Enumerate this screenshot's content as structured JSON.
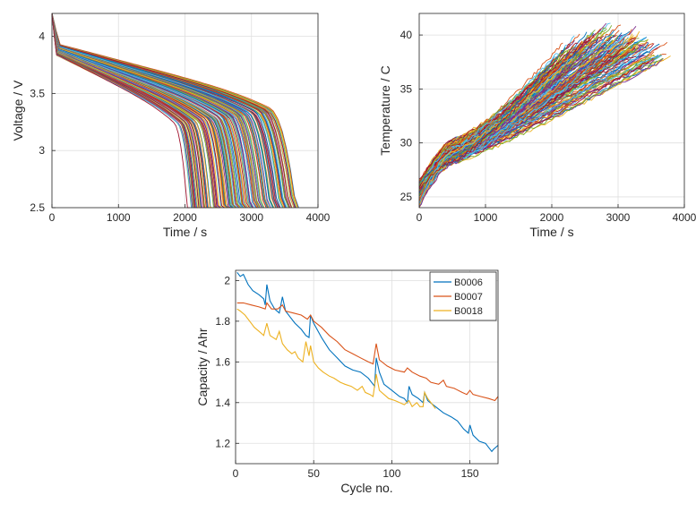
{
  "chart_data": [
    {
      "type": "line",
      "xlabel": "Time / s",
      "ylabel": "Voltage / V",
      "xlim": [
        0,
        4000
      ],
      "ylim": [
        2.5,
        4.2
      ],
      "x_ticks": [
        "0",
        "1000",
        "2000",
        "3000",
        "4000"
      ],
      "y_ticks": [
        "2.5",
        "3",
        "3.5",
        "4"
      ],
      "grid": true,
      "curve_count": 168,
      "discharge_end_time_range": [
        2100,
        3700
      ],
      "start_voltage": 4.2,
      "cutoff_voltage": 2.5
    },
    {
      "type": "line",
      "xlabel": "Time / s",
      "ylabel": "Temperature / C",
      "xlim": [
        0,
        4000
      ],
      "ylim": [
        24,
        42
      ],
      "x_ticks": [
        "0",
        "1000",
        "2000",
        "3000",
        "4000"
      ],
      "y_ticks": [
        "25",
        "30",
        "35",
        "40"
      ],
      "grid": true,
      "curve_count": 168,
      "start_temperature_range": [
        24,
        26.5
      ],
      "end_temperature_range": [
        35,
        41.5
      ]
    },
    {
      "type": "line",
      "xlabel": "Cycle no.",
      "ylabel": "Capacity / Ahr",
      "xlim": [
        0,
        168
      ],
      "ylim": [
        1.1,
        2.05
      ],
      "x_ticks": [
        "0",
        "50",
        "100",
        "150"
      ],
      "y_ticks": [
        "1.2",
        "1.4",
        "1.6",
        "1.8",
        "2"
      ],
      "grid": true,
      "legend_position": "top-right",
      "series": [
        {
          "name": "B0006",
          "color": "#0072BD",
          "points": [
            [
              1,
              2.04
            ],
            [
              3,
              2.02
            ],
            [
              5,
              2.03
            ],
            [
              8,
              1.98
            ],
            [
              11,
              1.95
            ],
            [
              15,
              1.93
            ],
            [
              18,
              1.91
            ],
            [
              19,
              1.88
            ],
            [
              20,
              1.98
            ],
            [
              22,
              1.9
            ],
            [
              25,
              1.86
            ],
            [
              28,
              1.84
            ],
            [
              30,
              1.92
            ],
            [
              32,
              1.85
            ],
            [
              35,
              1.82
            ],
            [
              38,
              1.79
            ],
            [
              42,
              1.76
            ],
            [
              45,
              1.73
            ],
            [
              47,
              1.72
            ],
            [
              48,
              1.83
            ],
            [
              50,
              1.79
            ],
            [
              55,
              1.72
            ],
            [
              60,
              1.66
            ],
            [
              65,
              1.62
            ],
            [
              70,
              1.58
            ],
            [
              75,
              1.56
            ],
            [
              80,
              1.55
            ],
            [
              85,
              1.52
            ],
            [
              88,
              1.49
            ],
            [
              89,
              1.48
            ],
            [
              90,
              1.62
            ],
            [
              92,
              1.55
            ],
            [
              95,
              1.49
            ],
            [
              100,
              1.46
            ],
            [
              105,
              1.43
            ],
            [
              108,
              1.42
            ],
            [
              110,
              1.4
            ],
            [
              111,
              1.48
            ],
            [
              113,
              1.44
            ],
            [
              117,
              1.42
            ],
            [
              120,
              1.4
            ],
            [
              121,
              1.45
            ],
            [
              123,
              1.41
            ],
            [
              128,
              1.38
            ],
            [
              133,
              1.35
            ],
            [
              138,
              1.33
            ],
            [
              142,
              1.31
            ],
            [
              146,
              1.27
            ],
            [
              149,
              1.25
            ],
            [
              150,
              1.29
            ],
            [
              152,
              1.24
            ],
            [
              156,
              1.21
            ],
            [
              160,
              1.2
            ],
            [
              164,
              1.16
            ],
            [
              165,
              1.17
            ],
            [
              168,
              1.19
            ]
          ]
        },
        {
          "name": "B0007",
          "color": "#D95319",
          "points": [
            [
              1,
              1.89
            ],
            [
              5,
              1.89
            ],
            [
              10,
              1.88
            ],
            [
              15,
              1.87
            ],
            [
              19,
              1.86
            ],
            [
              20,
              1.89
            ],
            [
              23,
              1.86
            ],
            [
              27,
              1.86
            ],
            [
              30,
              1.88
            ],
            [
              32,
              1.85
            ],
            [
              37,
              1.84
            ],
            [
              42,
              1.83
            ],
            [
              46,
              1.81
            ],
            [
              48,
              1.83
            ],
            [
              50,
              1.8
            ],
            [
              55,
              1.77
            ],
            [
              60,
              1.73
            ],
            [
              65,
              1.7
            ],
            [
              70,
              1.66
            ],
            [
              75,
              1.64
            ],
            [
              80,
              1.62
            ],
            [
              85,
              1.6
            ],
            [
              88,
              1.59
            ],
            [
              90,
              1.69
            ],
            [
              92,
              1.61
            ],
            [
              97,
              1.58
            ],
            [
              102,
              1.56
            ],
            [
              108,
              1.55
            ],
            [
              110,
              1.57
            ],
            [
              113,
              1.55
            ],
            [
              118,
              1.53
            ],
            [
              122,
              1.52
            ],
            [
              125,
              1.5
            ],
            [
              130,
              1.49
            ],
            [
              133,
              1.51
            ],
            [
              135,
              1.48
            ],
            [
              140,
              1.47
            ],
            [
              145,
              1.45
            ],
            [
              148,
              1.44
            ],
            [
              150,
              1.46
            ],
            [
              152,
              1.44
            ],
            [
              157,
              1.43
            ],
            [
              162,
              1.42
            ],
            [
              166,
              1.41
            ],
            [
              168,
              1.43
            ]
          ]
        },
        {
          "name": "B0018",
          "color": "#EDB120",
          "points": [
            [
              1,
              1.86
            ],
            [
              3,
              1.85
            ],
            [
              6,
              1.83
            ],
            [
              9,
              1.8
            ],
            [
              12,
              1.77
            ],
            [
              15,
              1.75
            ],
            [
              18,
              1.73
            ],
            [
              20,
              1.79
            ],
            [
              22,
              1.73
            ],
            [
              26,
              1.71
            ],
            [
              28,
              1.75
            ],
            [
              30,
              1.69
            ],
            [
              33,
              1.66
            ],
            [
              36,
              1.64
            ],
            [
              38,
              1.65
            ],
            [
              40,
              1.62
            ],
            [
              43,
              1.6
            ],
            [
              45,
              1.7
            ],
            [
              47,
              1.63
            ],
            [
              48,
              1.68
            ],
            [
              50,
              1.6
            ],
            [
              53,
              1.57
            ],
            [
              56,
              1.55
            ],
            [
              60,
              1.53
            ],
            [
              63,
              1.52
            ],
            [
              67,
              1.5
            ],
            [
              70,
              1.49
            ],
            [
              74,
              1.48
            ],
            [
              78,
              1.46
            ],
            [
              81,
              1.48
            ],
            [
              83,
              1.45
            ],
            [
              86,
              1.44
            ],
            [
              88,
              1.43
            ],
            [
              90,
              1.54
            ],
            [
              92,
              1.46
            ],
            [
              95,
              1.44
            ],
            [
              98,
              1.42
            ],
            [
              102,
              1.41
            ],
            [
              105,
              1.4
            ],
            [
              108,
              1.39
            ],
            [
              111,
              1.41
            ],
            [
              113,
              1.38
            ],
            [
              116,
              1.4
            ],
            [
              118,
              1.38
            ],
            [
              120,
              1.38
            ],
            [
              121,
              1.45
            ],
            [
              123,
              1.42
            ],
            [
              126,
              1.39
            ],
            [
              128,
              1.37
            ]
          ]
        }
      ]
    }
  ]
}
